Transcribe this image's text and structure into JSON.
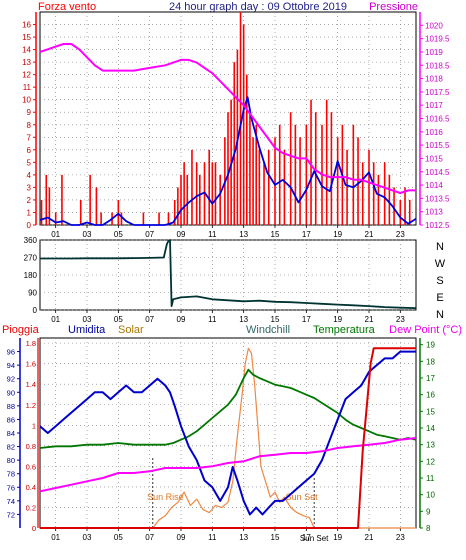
{
  "chart_data": [
    {
      "type": "line",
      "title": "24 hour graph day : 09 Ottobre 2019",
      "x_ticks": [
        "01",
        "03",
        "05",
        "07",
        "09",
        "11",
        "13",
        "15",
        "17",
        "19",
        "21",
        "23"
      ],
      "xlim": [
        0,
        24
      ],
      "grid": true,
      "left_axis": {
        "label": "Forza vento",
        "ylim": [
          0,
          17
        ],
        "ticks": [
          0,
          1,
          2,
          3,
          4,
          5,
          6,
          7,
          8,
          9,
          10,
          11,
          12,
          13,
          14,
          15,
          16
        ]
      },
      "right_axis": {
        "label": "Pressione",
        "ylim": [
          1012.5,
          1020.5
        ],
        "ticks": [
          "1012.5",
          "1013",
          "1013.5",
          "1014",
          "1014.5",
          "1015",
          "1015.5",
          "1016",
          "1016.5",
          "1017",
          "1017.5",
          "1018",
          "1018.5",
          "1019",
          "1019.5",
          "1020"
        ]
      },
      "series": [
        {
          "name": "Forza vento",
          "axis": "left",
          "color": "#ff0000",
          "kind": "bars",
          "x": [
            0.1,
            0.4,
            0.6,
            1.0,
            1.4,
            2.6,
            3.2,
            3.6,
            3.9,
            4.6,
            5.0,
            5.2,
            6.6,
            7.6,
            8.2,
            8.6,
            8.8,
            9.0,
            9.2,
            9.4,
            9.7,
            10.0,
            10.2,
            10.5,
            10.8,
            11.0,
            11.2,
            11.5,
            11.8,
            12.0,
            12.2,
            12.4,
            12.6,
            12.8,
            13.0,
            13.2,
            13.4,
            13.6,
            13.8,
            14.0,
            14.3,
            14.6,
            15.0,
            15.3,
            15.6,
            16.0,
            16.3,
            16.6,
            17.0,
            17.3,
            17.6,
            18.0,
            18.3,
            18.6,
            19.0,
            19.3,
            19.6,
            20.0,
            20.3,
            20.6,
            21.0,
            21.3,
            21.6,
            22.0,
            22.3,
            22.6,
            23.0,
            23.3,
            23.6
          ],
          "values": [
            2,
            4,
            3,
            1,
            4,
            2,
            4,
            3,
            1,
            1,
            2,
            1,
            1,
            1,
            1,
            2,
            3,
            4,
            5,
            4,
            6,
            5,
            4,
            5,
            6,
            5,
            5,
            4,
            7,
            9,
            10,
            13,
            14,
            17,
            16,
            12,
            9,
            7,
            8,
            6,
            5,
            6,
            7,
            8,
            6,
            9,
            8,
            7,
            8,
            10,
            9,
            8,
            10,
            9,
            7,
            8,
            6,
            8,
            7,
            5,
            6,
            5,
            4,
            5,
            4,
            3,
            2,
            3,
            2
          ]
        },
        {
          "name": "Velocita media",
          "axis": "left",
          "color": "#0000dd",
          "x": [
            0,
            0.5,
            1,
            1.5,
            2,
            2.5,
            3,
            3.5,
            4,
            4.5,
            5,
            5.5,
            6,
            6.5,
            7,
            7.5,
            8,
            8.5,
            9,
            9.5,
            10,
            10.5,
            11,
            11.5,
            12,
            12.5,
            13,
            13.25,
            13.5,
            14,
            14.5,
            15,
            15.5,
            16,
            16.5,
            17,
            17.5,
            18,
            18.5,
            19,
            19.5,
            20,
            20.5,
            21,
            21.5,
            22,
            22.5,
            23,
            23.5,
            24
          ],
          "values": [
            0.4,
            0.6,
            0.2,
            0.3,
            0,
            0,
            0.2,
            0,
            0,
            0.4,
            0.9,
            0.3,
            0,
            0,
            0,
            0,
            0,
            0.2,
            1.2,
            1.8,
            2.3,
            2.6,
            1.7,
            2.5,
            4.0,
            6.1,
            9.2,
            10.2,
            8.5,
            6.2,
            4.2,
            3.2,
            3.6,
            3.0,
            1.8,
            2.8,
            4.3,
            3.1,
            2.7,
            5.1,
            3.2,
            3.0,
            3.5,
            4.2,
            2.5,
            2.2,
            1.5,
            0.6,
            0.1,
            0.5
          ]
        },
        {
          "name": "Pressione",
          "axis": "right",
          "color": "#ff00ff",
          "x": [
            0,
            0.5,
            1,
            1.5,
            2,
            2.5,
            3,
            3.5,
            4,
            5,
            6,
            7,
            8,
            8.5,
            9,
            9.5,
            10,
            10.5,
            11,
            11.5,
            12,
            12.5,
            13,
            13.5,
            14,
            14.5,
            15,
            15.5,
            16,
            16.5,
            17,
            17.5,
            18,
            18.5,
            19,
            19.5,
            20,
            20.5,
            21,
            21.5,
            22,
            22.5,
            23,
            23.5,
            24
          ],
          "values": [
            1019.0,
            1019.1,
            1019.2,
            1019.3,
            1019.3,
            1019.1,
            1018.8,
            1018.5,
            1018.3,
            1018.3,
            1018.3,
            1018.4,
            1018.5,
            1018.6,
            1018.7,
            1018.7,
            1018.6,
            1018.4,
            1018.2,
            1017.9,
            1017.6,
            1017.3,
            1017.0,
            1016.6,
            1016.2,
            1015.8,
            1015.4,
            1015.2,
            1015.1,
            1015.0,
            1015.0,
            1014.6,
            1014.4,
            1014.3,
            1014.3,
            1014.3,
            1014.2,
            1014.2,
            1014.1,
            1014.0,
            1013.9,
            1013.8,
            1013.7,
            1013.8,
            1013.8
          ]
        }
      ]
    },
    {
      "type": "line",
      "x_ticks": [
        "01",
        "03",
        "05",
        "07",
        "09",
        "11",
        "13",
        "15",
        "17",
        "19",
        "21",
        "23"
      ],
      "xlim": [
        0,
        24
      ],
      "ylim": [
        0,
        360
      ],
      "y_ticks": [
        0,
        90,
        180,
        270,
        360
      ],
      "right_labels": [
        "N",
        "W",
        "S",
        "E",
        "N"
      ],
      "series": [
        {
          "name": "Direzione vento",
          "color": "#003333",
          "x": [
            0,
            1,
            2,
            3,
            4,
            5,
            6,
            7,
            7.9,
            8.1,
            8.2,
            8.3,
            8.4,
            8.5,
            9,
            10,
            11,
            12,
            13,
            14,
            15,
            16,
            17,
            18,
            19,
            20,
            21,
            22,
            23,
            24
          ],
          "values": [
            265,
            265,
            265,
            266,
            266,
            266,
            267,
            268,
            270,
            340,
            355,
            360,
            20,
            55,
            65,
            70,
            55,
            50,
            45,
            48,
            42,
            40,
            36,
            32,
            28,
            24,
            20,
            15,
            12,
            10
          ]
        }
      ]
    },
    {
      "type": "line",
      "x_ticks": [
        "01",
        "03",
        "05",
        "07",
        "09",
        "11",
        "13",
        "15",
        "17",
        "19",
        "21",
        "23"
      ],
      "xlim": [
        0,
        24
      ],
      "legend": [
        "Pioggia",
        "Umidita",
        "Solar",
        "Windchill",
        "Temperatura",
        "Dew Point (°C)"
      ],
      "left_axis": {
        "ylim": [
          0,
          1.85
        ],
        "ticks": [
          "0",
          "0.2",
          "0.4",
          "0.6",
          "0.8",
          "1",
          "1.2",
          "1.4",
          "1.6",
          "1.8"
        ]
      },
      "humidity_axis": {
        "ylim": [
          70,
          98
        ],
        "ticks": [
          72,
          74,
          76,
          78,
          80,
          82,
          84,
          86,
          88,
          90,
          92,
          94,
          96
        ]
      },
      "right_axis": {
        "ylim": [
          8,
          19.4
        ],
        "ticks": [
          8,
          9,
          10,
          11,
          12,
          13,
          14,
          15,
          16,
          17,
          18,
          19
        ]
      },
      "annotations": [
        "Sun Rise",
        "Sun Set"
      ],
      "series": [
        {
          "name": "Pioggia",
          "axis": "left",
          "color": "#dd0000",
          "x": [
            0,
            20.3,
            20.4,
            20.6,
            20.9,
            21.1,
            21.3,
            24
          ],
          "values": [
            0,
            0,
            0.25,
            0.75,
            1.25,
            1.6,
            1.75,
            1.75
          ]
        },
        {
          "name": "Umidita",
          "axis": "humidity",
          "color": "#0000cc",
          "x": [
            0,
            0.5,
            1,
            1.5,
            2,
            2.5,
            3,
            3.5,
            4,
            4.5,
            5,
            5.5,
            6,
            6.5,
            7,
            7.5,
            8,
            8.3,
            8.6,
            9,
            9.5,
            10,
            10.5,
            11,
            11.5,
            12,
            12.3,
            12.6,
            13,
            13.4,
            13.8,
            14.2,
            14.6,
            15,
            15.5,
            16,
            16.5,
            17,
            17.5,
            18,
            18.5,
            19,
            19.5,
            20,
            20.5,
            21,
            21.5,
            22,
            22.5,
            23,
            23.5,
            24
          ],
          "values": [
            85,
            84,
            85,
            86,
            87,
            88,
            89,
            90,
            90,
            89,
            90,
            91,
            90,
            90,
            91,
            92,
            91,
            90,
            88,
            85,
            82,
            80,
            77,
            76,
            74,
            76,
            79,
            77,
            74,
            72,
            73,
            72,
            73,
            74,
            74,
            75,
            76,
            77,
            78,
            80,
            83,
            86,
            89,
            90,
            91,
            93,
            94,
            95,
            95,
            96,
            96,
            96
          ]
        },
        {
          "name": "Solar",
          "axis": "left",
          "color": "#ee8844",
          "x": [
            0,
            7.2,
            7.6,
            8.0,
            8.4,
            8.8,
            9.2,
            9.6,
            10,
            10.4,
            10.8,
            11.2,
            11.6,
            12,
            12.3,
            12.6,
            12.9,
            13.1,
            13.3,
            13.5,
            13.7,
            13.9,
            14.1,
            14.4,
            14.7,
            15,
            15.3,
            15.6,
            16,
            16.4,
            16.8,
            17.2,
            17.5,
            24
          ],
          "values": [
            0,
            0,
            0.08,
            0.12,
            0.2,
            0.25,
            0.35,
            0.22,
            0.28,
            0.18,
            0.15,
            0.22,
            0.2,
            0.25,
            0.45,
            0.9,
            1.3,
            1.6,
            1.75,
            1.7,
            1.4,
            1.0,
            0.6,
            0.45,
            0.3,
            0.35,
            0.25,
            0.3,
            0.2,
            0.15,
            0.12,
            0.1,
            0,
            0
          ]
        },
        {
          "name": "Windchill",
          "axis": "right",
          "color": "#444488",
          "x": [
            0,
            24
          ],
          "values": [
            12.9,
            12.9
          ],
          "visible": false
        },
        {
          "name": "Temperatura",
          "axis": "right",
          "color": "#007700",
          "x": [
            0,
            1,
            2,
            3,
            4,
            5,
            6,
            7,
            8,
            8.5,
            9,
            9.5,
            10,
            10.5,
            11,
            11.5,
            12,
            12.5,
            13,
            13.3,
            13.6,
            14,
            14.5,
            15,
            15.5,
            16,
            16.5,
            17,
            17.5,
            18,
            18.5,
            19,
            19.5,
            20,
            20.5,
            21,
            21.5,
            22,
            22.5,
            23,
            23.5,
            24
          ],
          "values": [
            12.8,
            12.9,
            12.9,
            13.0,
            13.0,
            13.1,
            13.0,
            13.0,
            13.0,
            13.1,
            13.3,
            13.5,
            13.8,
            14.2,
            14.6,
            15.0,
            15.4,
            16.0,
            17.0,
            17.5,
            17.2,
            17.0,
            16.8,
            16.6,
            16.5,
            16.4,
            16.2,
            16.0,
            15.8,
            15.5,
            15.2,
            14.9,
            14.5,
            14.2,
            14.0,
            13.8,
            13.6,
            13.5,
            13.4,
            13.3,
            13.4,
            13.3
          ]
        },
        {
          "name": "Dew Point (°C)",
          "axis": "right",
          "color": "#ff00ff",
          "x": [
            0,
            1,
            2,
            3,
            4,
            5,
            6,
            7,
            8,
            9,
            10,
            11,
            12,
            13,
            14,
            15,
            16,
            17,
            18,
            19,
            20,
            21,
            22,
            23,
            24
          ],
          "values": [
            10.2,
            10.4,
            10.6,
            10.8,
            11.0,
            11.3,
            11.3,
            11.4,
            11.6,
            11.6,
            11.6,
            11.7,
            11.9,
            12.0,
            12.3,
            12.4,
            12.5,
            12.5,
            12.6,
            12.8,
            12.9,
            13.0,
            13.1,
            13.3,
            13.4
          ]
        }
      ]
    }
  ]
}
